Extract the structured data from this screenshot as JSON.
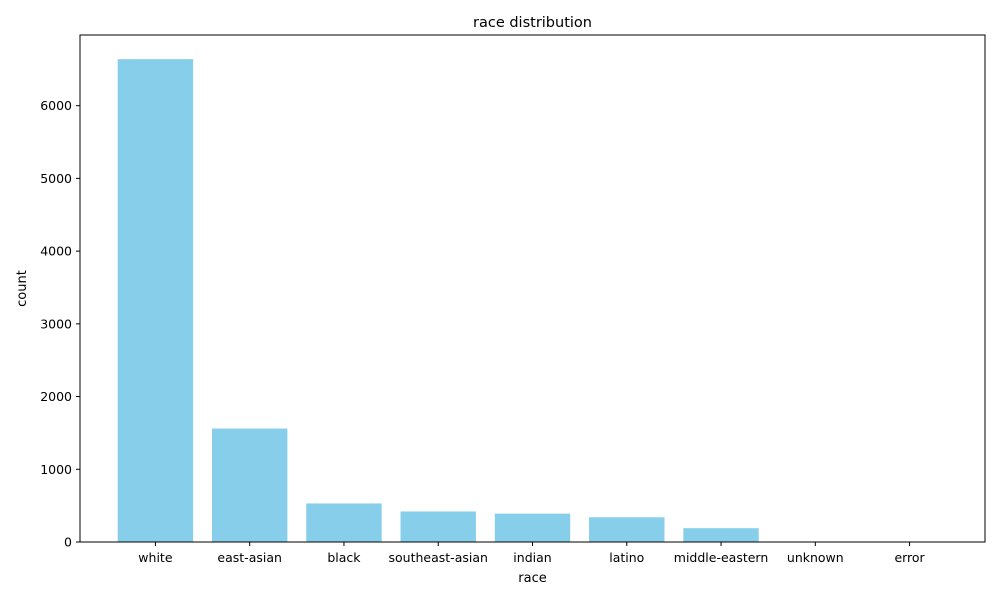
{
  "chart_data": {
    "type": "bar",
    "title": "race distribution",
    "xlabel": "race",
    "ylabel": "count",
    "categories": [
      "white",
      "east-asian",
      "black",
      "southeast-asian",
      "indian",
      "latino",
      "middle-eastern",
      "unknown",
      "error"
    ],
    "values": [
      6640,
      1560,
      530,
      420,
      390,
      340,
      190,
      5,
      3
    ],
    "ylim": [
      0,
      6972
    ],
    "yticks": [
      0,
      1000,
      2000,
      3000,
      4000,
      5000,
      6000
    ],
    "bar_color": "#87ceeb",
    "grid": false,
    "legend": "none"
  }
}
